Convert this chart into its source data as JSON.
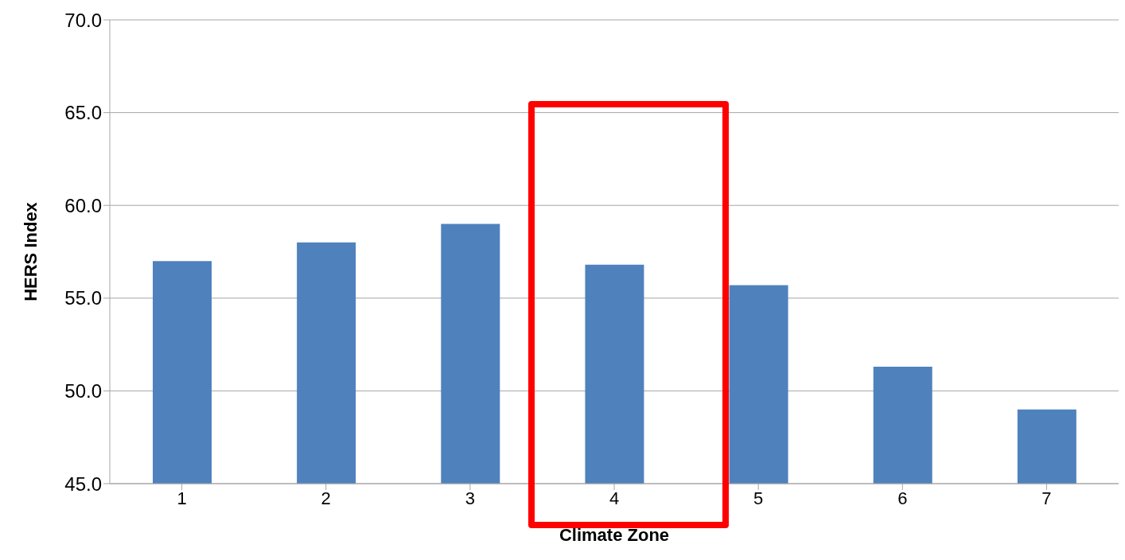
{
  "chart_data": {
    "type": "bar",
    "xlabel": "Climate Zone",
    "ylabel": "HERS Index",
    "categories": [
      "1",
      "2",
      "3",
      "4",
      "5",
      "6",
      "7"
    ],
    "values": [
      57.0,
      58.0,
      59.0,
      56.8,
      55.7,
      51.3,
      49.0
    ],
    "color": "#4f81bd",
    "ylim": [
      45,
      70
    ],
    "yticks": [
      {
        "value": 45,
        "label": "45.0"
      },
      {
        "value": 50,
        "label": "50.0"
      },
      {
        "value": 55,
        "label": "55.0"
      },
      {
        "value": 60,
        "label": "60.0"
      },
      {
        "value": 65,
        "label": "65.0"
      },
      {
        "value": 70,
        "label": "70.0"
      }
    ],
    "grid": "y"
  }
}
